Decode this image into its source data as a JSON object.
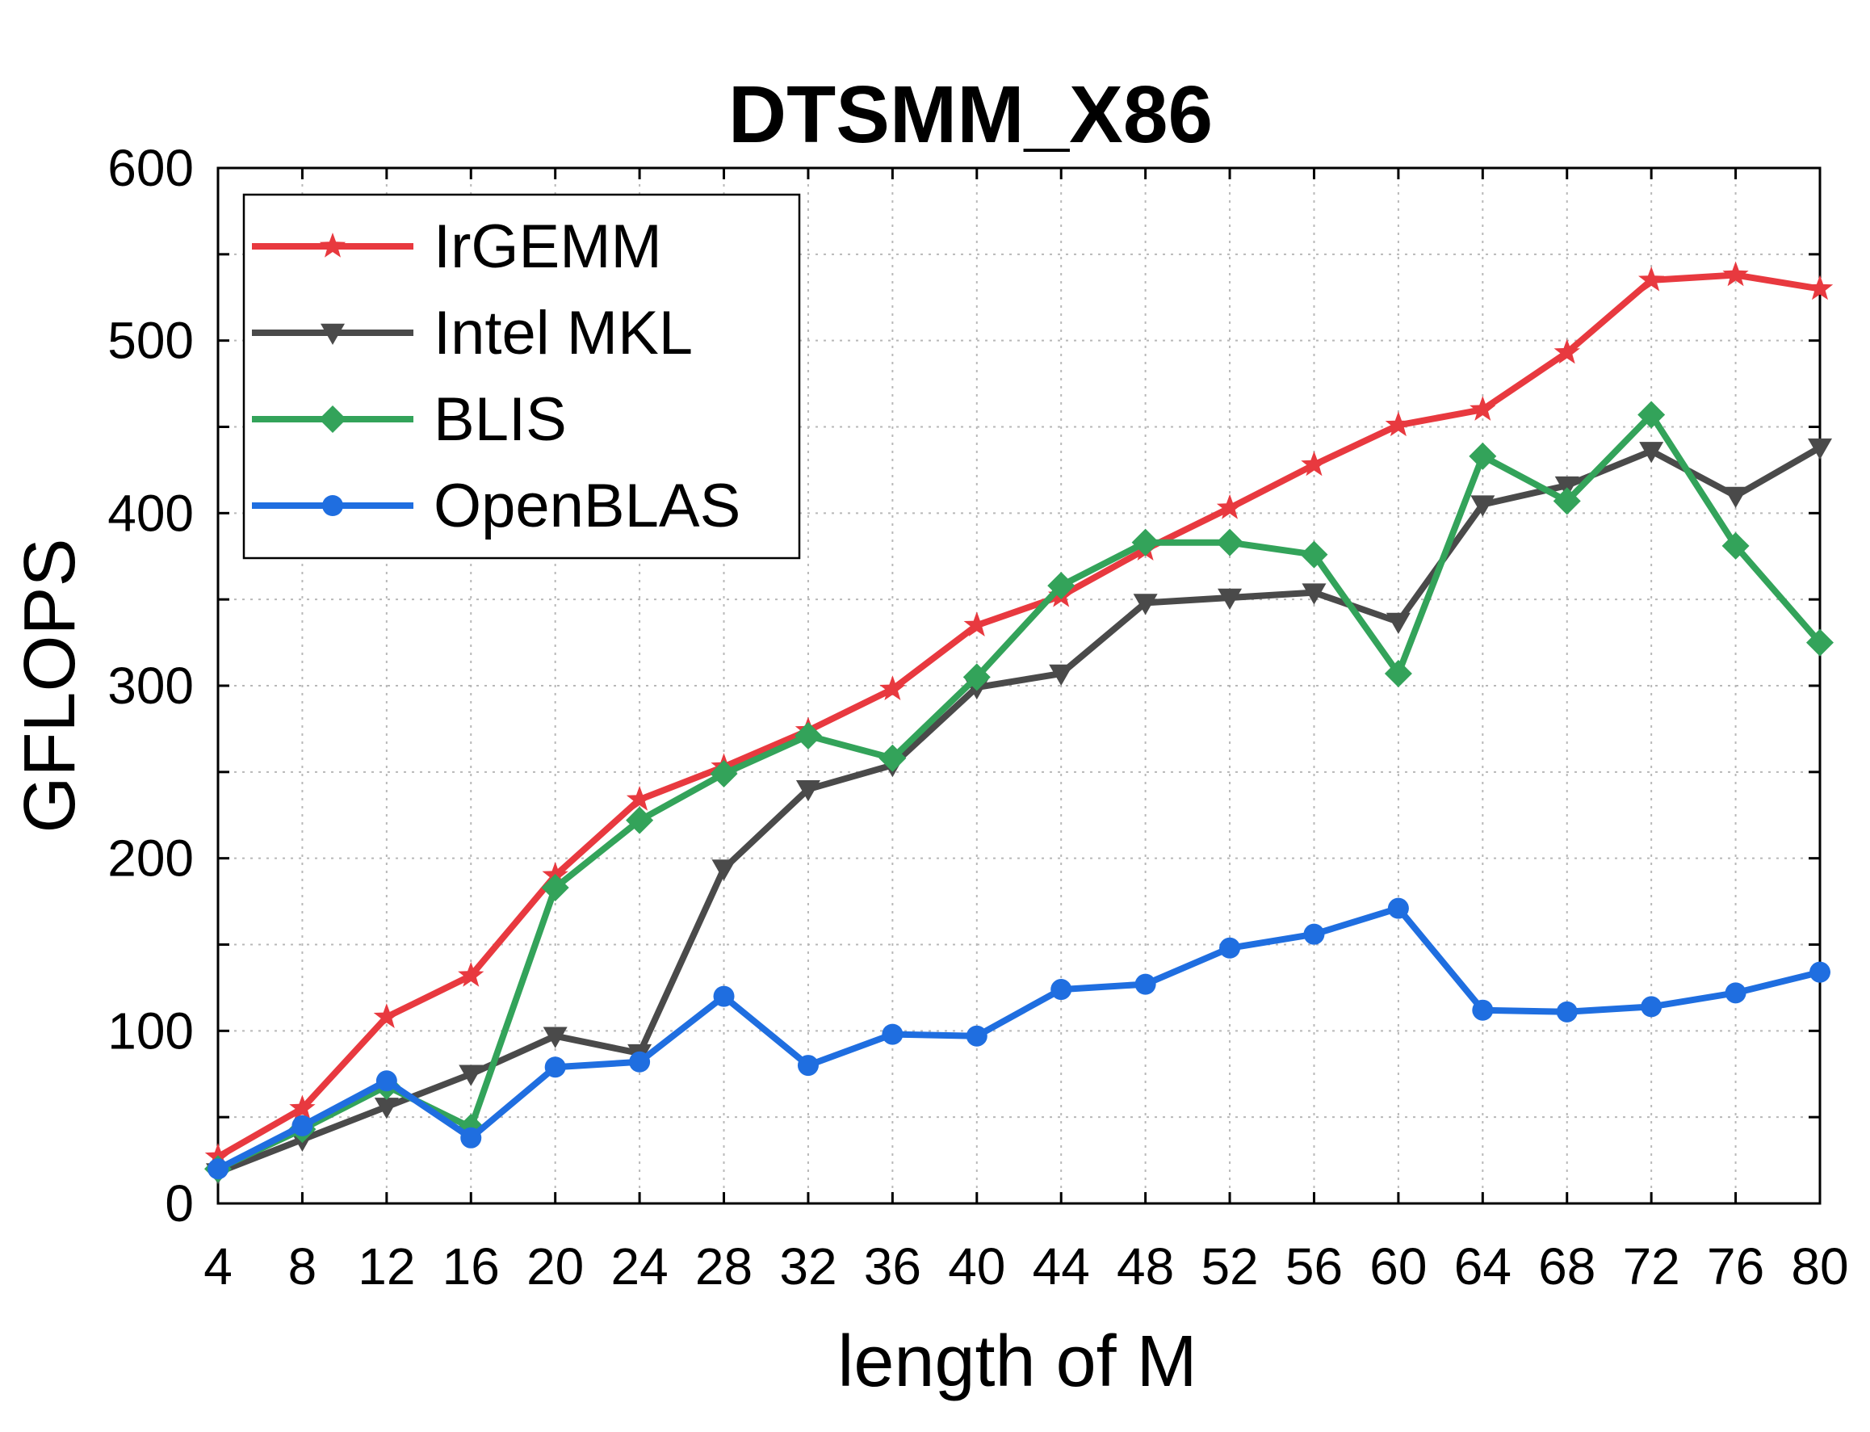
{
  "chart_data": {
    "type": "line",
    "title": "DTSMM_X86",
    "xlabel": "length of M",
    "ylabel": "GFLOPS",
    "x": [
      4,
      8,
      12,
      16,
      20,
      24,
      28,
      32,
      36,
      40,
      44,
      48,
      52,
      56,
      60,
      64,
      68,
      72,
      76,
      80
    ],
    "xlim": [
      4,
      80
    ],
    "ylim": [
      0,
      600
    ],
    "yticks": [
      0,
      100,
      200,
      300,
      400,
      500,
      600
    ],
    "grid": true,
    "legend_position": "top-left",
    "series": [
      {
        "name": "IrGEMM",
        "color": "#e8393f",
        "marker": "star",
        "values": [
          27,
          55,
          108,
          132,
          190,
          234,
          253,
          274,
          298,
          335,
          352,
          379,
          403,
          428,
          451,
          460,
          493,
          535,
          538,
          530
        ]
      },
      {
        "name": "Intel MKL",
        "color": "#4a4a4a",
        "marker": "triangle-down",
        "values": [
          18,
          37,
          56,
          75,
          97,
          87,
          194,
          240,
          254,
          299,
          307,
          348,
          351,
          354,
          337,
          405,
          416,
          436,
          410,
          438
        ]
      },
      {
        "name": "BLIS",
        "color": "#33a35a",
        "marker": "diamond",
        "values": [
          20,
          43,
          68,
          44,
          183,
          222,
          249,
          271,
          258,
          305,
          358,
          383,
          383,
          376,
          307,
          433,
          407,
          457,
          381,
          325
        ]
      },
      {
        "name": "OpenBLAS",
        "color": "#1f6ee0",
        "marker": "circle",
        "values": [
          20,
          45,
          71,
          38,
          79,
          82,
          120,
          80,
          98,
          97,
          124,
          127,
          148,
          156,
          171,
          112,
          111,
          114,
          122,
          134
        ]
      }
    ]
  }
}
